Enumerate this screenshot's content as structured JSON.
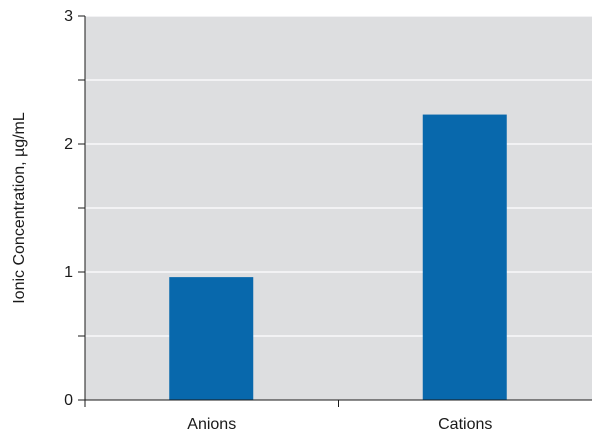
{
  "chart_data": {
    "type": "bar",
    "title": "",
    "xlabel": "",
    "ylabel": "Ionic Concentration, µg/mL",
    "categories": [
      "Anions",
      "Cations"
    ],
    "values": [
      0.96,
      2.23
    ],
    "ylim": [
      0,
      3
    ],
    "yticks": [
      0,
      1,
      2,
      3
    ],
    "ytick_labels": [
      "0",
      "1",
      "2",
      "3"
    ],
    "minor_ytick_step": 0.5,
    "grid": true,
    "legend": "none",
    "colors": {
      "bar": "#0868ac",
      "plot_background": "#dddee0",
      "gridline": "#ffffff",
      "axis": "#1a1a1a"
    }
  }
}
